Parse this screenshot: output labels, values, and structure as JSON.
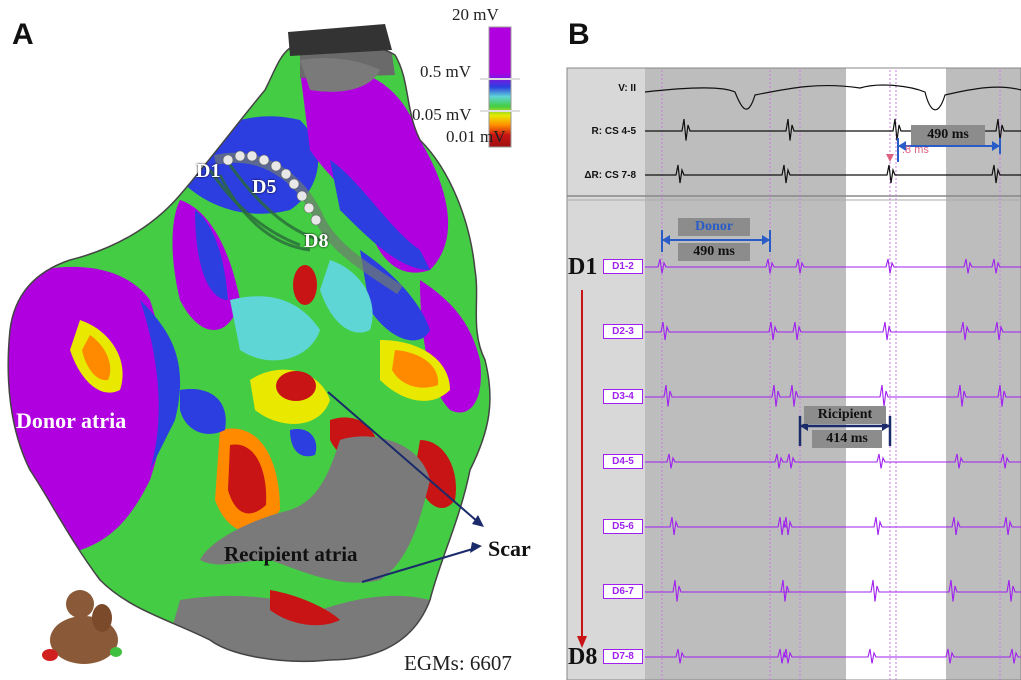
{
  "panels": {
    "a": "A",
    "b": "B"
  },
  "map": {
    "scale": {
      "top": "20 mV",
      "upper": "0.5 mV",
      "lower": "0.05 mV",
      "bottom": "0.01 mV"
    },
    "catheter_labels": [
      "D1",
      "D5",
      "D8"
    ],
    "donor_label": "Donor atria",
    "recipient_label": "Recipient atria",
    "scar_label": "Scar",
    "egms": "EGMs: 6607",
    "colors": {
      "purple": "#b100e0",
      "blue": "#2c3ee0",
      "cyan": "#5fd6d6",
      "green": "#44cc44",
      "yellow": "#e8e800",
      "orange": "#ff8a00",
      "red": "#c81414",
      "scar": "#7a7a7a"
    }
  },
  "tracing": {
    "channels": [
      "V: II",
      "R: CS 4-5",
      "ΔR: CS 7-8"
    ],
    "d_channels": [
      "D1-2",
      "D2-3",
      "D3-4",
      "D4-5",
      "D5-6",
      "D6-7",
      "D7-8"
    ],
    "d_first": "D1",
    "d_last": "D8",
    "cs_interval": "490 ms",
    "cs_small": ".8 ms",
    "donor_title": "Donor",
    "donor_interval": "490 ms",
    "recipient_title": "Ricipient",
    "recipient_interval": "414 ms",
    "trace_color": "#a020f0"
  }
}
